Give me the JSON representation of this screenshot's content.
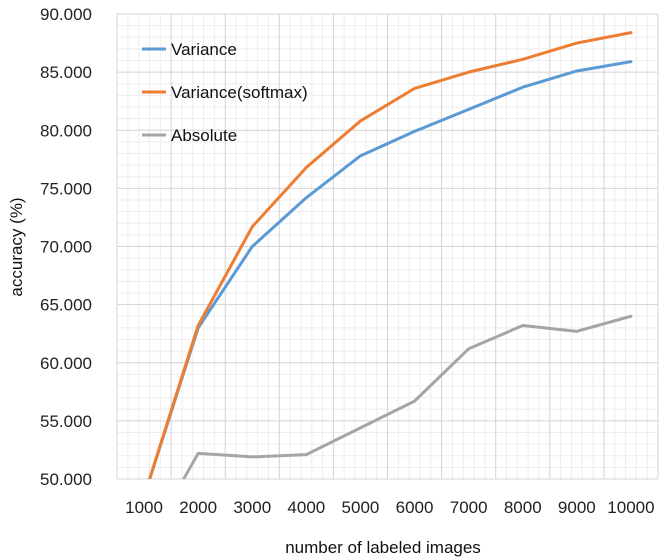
{
  "chart_data": {
    "type": "line",
    "title": "",
    "xlabel": "number of labeled images",
    "ylabel": "accuracy (%)",
    "x": [
      1000,
      2000,
      3000,
      4000,
      5000,
      6000,
      7000,
      8000,
      9000,
      10000
    ],
    "x_tick_labels": [
      "1000",
      "2000",
      "3000",
      "4000",
      "5000",
      "6000",
      "7000",
      "8000",
      "9000",
      "10000"
    ],
    "y_ticks": [
      50,
      55,
      60,
      65,
      70,
      75,
      80,
      85,
      90
    ],
    "y_tick_labels": [
      "50.000",
      "55.000",
      "60.000",
      "65.000",
      "70.000",
      "75.000",
      "80.000",
      "85.000",
      "90.000"
    ],
    "ylim": [
      50,
      90
    ],
    "grid": true,
    "legend_position": "top-left",
    "series": [
      {
        "name": "Variance",
        "color": "#5B9BD5",
        "values": [
          48.5,
          63.0,
          70.0,
          74.2,
          77.8,
          79.9,
          81.8,
          83.7,
          85.1,
          85.9
        ]
      },
      {
        "name": "Variance(softmax)",
        "color": "#ED7D31",
        "values": [
          48.5,
          63.2,
          71.7,
          76.8,
          80.8,
          83.6,
          85.0,
          86.1,
          87.5,
          88.4
        ]
      },
      {
        "name": "Absolute",
        "color": "#A5A5A5",
        "values": [
          44.0,
          52.2,
          51.9,
          52.1,
          54.4,
          56.7,
          61.2,
          63.2,
          62.7,
          64.0
        ]
      }
    ]
  }
}
